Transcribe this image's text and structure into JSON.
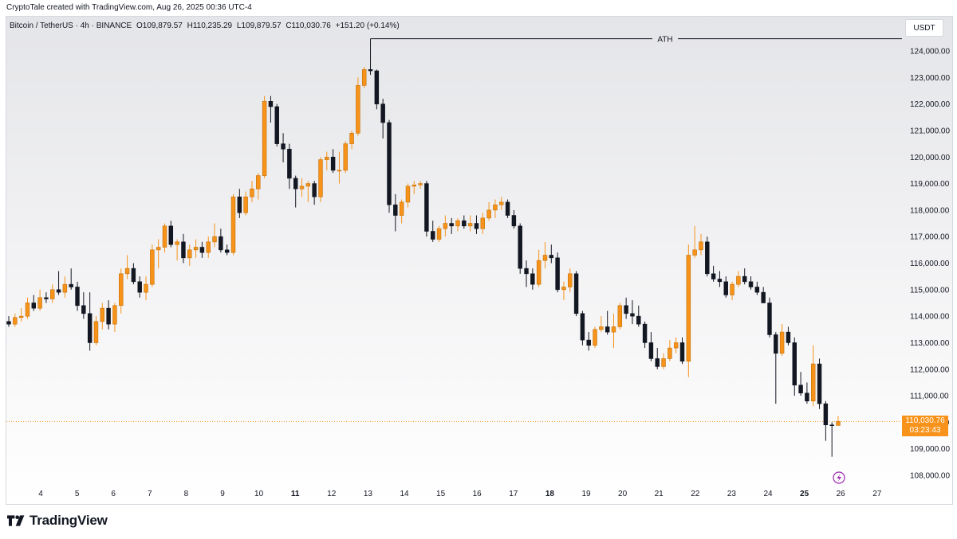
{
  "header": {
    "credit": "CryptoTale created with TradingView.com, Aug 26, 2025 00:36 UTC-4"
  },
  "legend": {
    "symbol": "Bitcoin / TetherUS · 4h · BINANCE",
    "open": "O109,879.57",
    "high": "H110,235.29",
    "low": "L109,879.57",
    "close": "C110,030.76",
    "change": "+151.20 (+0.14%)"
  },
  "currency_button": "USDT",
  "price_tag": {
    "price": "110,030.76",
    "countdown": "03:23:43"
  },
  "annotation": {
    "label": "ATH",
    "price": 124400
  },
  "brand": {
    "name": "TradingView",
    "logo_icon": "tradingview-logo-icon"
  },
  "colors": {
    "up": "#f7931a",
    "down": "#131722",
    "last_price": "#f7931a"
  },
  "chart_data": {
    "type": "candlestick",
    "symbol": "BTCUSDT",
    "timeframe": "4h",
    "y_axis": {
      "ticks": [
        108000,
        109000,
        110000,
        111000,
        112000,
        113000,
        114000,
        115000,
        116000,
        117000,
        118000,
        119000,
        120000,
        121000,
        122000,
        123000,
        124000
      ],
      "tick_labels": [
        "108,000.00",
        "109,000.00",
        "110,000.00",
        "111,000.00",
        "112,000.00",
        "113,000.00",
        "114,000.00",
        "115,000.00",
        "116,000.00",
        "117,000.00",
        "118,000.00",
        "119,000.00",
        "120,000.00",
        "121,000.00",
        "122,000.00",
        "123,000.00",
        "124,000.00"
      ],
      "range": [
        107400,
        125000
      ]
    },
    "x_axis": {
      "labels": [
        "4",
        "5",
        "6",
        "7",
        "8",
        "9",
        "10",
        "11",
        "12",
        "13",
        "14",
        "15",
        "16",
        "17",
        "18",
        "19",
        "20",
        "21",
        "22",
        "23",
        "24",
        "25",
        "26",
        "27"
      ],
      "bold": [
        "11",
        "18",
        "25"
      ],
      "day_range": [
        3.2,
        27.8
      ]
    },
    "last_price": 110030.76,
    "candles": [
      {
        "o": 113800,
        "h": 114000,
        "l": 113600,
        "c": 113700
      },
      {
        "o": 113700,
        "h": 114100,
        "l": 113600,
        "c": 113950
      },
      {
        "o": 113950,
        "h": 114300,
        "l": 113800,
        "c": 114000
      },
      {
        "o": 114000,
        "h": 114700,
        "l": 113900,
        "c": 114500
      },
      {
        "o": 114500,
        "h": 114800,
        "l": 114200,
        "c": 114300
      },
      {
        "o": 114300,
        "h": 115000,
        "l": 114200,
        "c": 114700
      },
      {
        "o": 114700,
        "h": 114900,
        "l": 114500,
        "c": 114650
      },
      {
        "o": 114650,
        "h": 115200,
        "l": 114500,
        "c": 115000
      },
      {
        "o": 115000,
        "h": 115700,
        "l": 114800,
        "c": 114900
      },
      {
        "o": 114900,
        "h": 115500,
        "l": 114700,
        "c": 115200
      },
      {
        "o": 115200,
        "h": 115800,
        "l": 115000,
        "c": 115100
      },
      {
        "o": 115100,
        "h": 115300,
        "l": 114200,
        "c": 114400
      },
      {
        "o": 114400,
        "h": 114900,
        "l": 113900,
        "c": 114100
      },
      {
        "o": 114100,
        "h": 114900,
        "l": 112700,
        "c": 113000
      },
      {
        "o": 113000,
        "h": 114000,
        "l": 112900,
        "c": 113800
      },
      {
        "o": 113800,
        "h": 114500,
        "l": 113500,
        "c": 114300
      },
      {
        "o": 114300,
        "h": 114600,
        "l": 113500,
        "c": 113700
      },
      {
        "o": 113700,
        "h": 114500,
        "l": 113400,
        "c": 114400
      },
      {
        "o": 114400,
        "h": 115800,
        "l": 114100,
        "c": 115600
      },
      {
        "o": 115600,
        "h": 116300,
        "l": 115400,
        "c": 115800
      },
      {
        "o": 115800,
        "h": 116000,
        "l": 115200,
        "c": 115300
      },
      {
        "o": 115300,
        "h": 115500,
        "l": 114700,
        "c": 114900
      },
      {
        "o": 114900,
        "h": 115500,
        "l": 114600,
        "c": 115200
      },
      {
        "o": 115200,
        "h": 116700,
        "l": 115100,
        "c": 116500
      },
      {
        "o": 116500,
        "h": 116900,
        "l": 115800,
        "c": 116600
      },
      {
        "o": 116600,
        "h": 117500,
        "l": 116400,
        "c": 117400
      },
      {
        "o": 117400,
        "h": 117600,
        "l": 116600,
        "c": 116700
      },
      {
        "o": 116700,
        "h": 116900,
        "l": 116100,
        "c": 116800
      },
      {
        "o": 116800,
        "h": 117100,
        "l": 116000,
        "c": 116200
      },
      {
        "o": 116200,
        "h": 116700,
        "l": 115900,
        "c": 116500
      },
      {
        "o": 116500,
        "h": 116900,
        "l": 116200,
        "c": 116600
      },
      {
        "o": 116600,
        "h": 116800,
        "l": 116200,
        "c": 116400
      },
      {
        "o": 116400,
        "h": 117000,
        "l": 116200,
        "c": 116800
      },
      {
        "o": 116800,
        "h": 117500,
        "l": 116600,
        "c": 117000
      },
      {
        "o": 117000,
        "h": 117300,
        "l": 116400,
        "c": 116500
      },
      {
        "o": 116500,
        "h": 116700,
        "l": 116300,
        "c": 116400
      },
      {
        "o": 116400,
        "h": 118600,
        "l": 116300,
        "c": 118500
      },
      {
        "o": 118500,
        "h": 118800,
        "l": 117700,
        "c": 117900
      },
      {
        "o": 117900,
        "h": 118700,
        "l": 117800,
        "c": 118500
      },
      {
        "o": 118500,
        "h": 119100,
        "l": 118300,
        "c": 118800
      },
      {
        "o": 118800,
        "h": 119400,
        "l": 118400,
        "c": 119300
      },
      {
        "o": 119300,
        "h": 122300,
        "l": 119200,
        "c": 122100
      },
      {
        "o": 122100,
        "h": 122300,
        "l": 121300,
        "c": 121900
      },
      {
        "o": 121900,
        "h": 122000,
        "l": 120400,
        "c": 120500
      },
      {
        "o": 120500,
        "h": 120900,
        "l": 119800,
        "c": 120300
      },
      {
        "o": 120300,
        "h": 120500,
        "l": 118800,
        "c": 119200
      },
      {
        "o": 119200,
        "h": 119300,
        "l": 118100,
        "c": 118800
      },
      {
        "o": 118800,
        "h": 119200,
        "l": 118500,
        "c": 118900
      },
      {
        "o": 118900,
        "h": 119100,
        "l": 118300,
        "c": 119000
      },
      {
        "o": 119000,
        "h": 119100,
        "l": 118200,
        "c": 118500
      },
      {
        "o": 118500,
        "h": 120000,
        "l": 118300,
        "c": 119900
      },
      {
        "o": 119900,
        "h": 120200,
        "l": 119500,
        "c": 120000
      },
      {
        "o": 120000,
        "h": 120300,
        "l": 119400,
        "c": 119500
      },
      {
        "o": 119500,
        "h": 120200,
        "l": 119000,
        "c": 119500
      },
      {
        "o": 119500,
        "h": 120600,
        "l": 119400,
        "c": 120500
      },
      {
        "o": 120500,
        "h": 121000,
        "l": 120300,
        "c": 120900
      },
      {
        "o": 120900,
        "h": 123000,
        "l": 120800,
        "c": 122700
      },
      {
        "o": 122700,
        "h": 123400,
        "l": 122600,
        "c": 123300
      },
      {
        "o": 123300,
        "h": 124400,
        "l": 123100,
        "c": 123250
      },
      {
        "o": 123250,
        "h": 123300,
        "l": 121800,
        "c": 122000
      },
      {
        "o": 122000,
        "h": 122200,
        "l": 120700,
        "c": 121300
      },
      {
        "o": 121300,
        "h": 121400,
        "l": 117900,
        "c": 118200
      },
      {
        "o": 118200,
        "h": 118600,
        "l": 117200,
        "c": 117800
      },
      {
        "o": 117800,
        "h": 118400,
        "l": 117500,
        "c": 118300
      },
      {
        "o": 118300,
        "h": 119000,
        "l": 118100,
        "c": 118900
      },
      {
        "o": 118900,
        "h": 119100,
        "l": 118600,
        "c": 118950
      },
      {
        "o": 118950,
        "h": 119100,
        "l": 118800,
        "c": 119000
      },
      {
        "o": 119000,
        "h": 119100,
        "l": 117000,
        "c": 117200
      },
      {
        "o": 117200,
        "h": 117600,
        "l": 116800,
        "c": 116900
      },
      {
        "o": 116900,
        "h": 117400,
        "l": 116800,
        "c": 117300
      },
      {
        "o": 117300,
        "h": 117800,
        "l": 117000,
        "c": 117500
      },
      {
        "o": 117500,
        "h": 117700,
        "l": 117100,
        "c": 117400
      },
      {
        "o": 117400,
        "h": 117700,
        "l": 117200,
        "c": 117600
      },
      {
        "o": 117600,
        "h": 117800,
        "l": 117300,
        "c": 117400
      },
      {
        "o": 117400,
        "h": 117800,
        "l": 117200,
        "c": 117500
      },
      {
        "o": 117500,
        "h": 117800,
        "l": 117100,
        "c": 117300
      },
      {
        "o": 117300,
        "h": 117900,
        "l": 117100,
        "c": 117700
      },
      {
        "o": 117700,
        "h": 118300,
        "l": 117600,
        "c": 118000
      },
      {
        "o": 118000,
        "h": 118400,
        "l": 117700,
        "c": 118200
      },
      {
        "o": 118200,
        "h": 118500,
        "l": 118000,
        "c": 118300
      },
      {
        "o": 118300,
        "h": 118400,
        "l": 117700,
        "c": 117800
      },
      {
        "o": 117800,
        "h": 118000,
        "l": 117300,
        "c": 117400
      },
      {
        "o": 117400,
        "h": 117500,
        "l": 115600,
        "c": 115800
      },
      {
        "o": 115800,
        "h": 116100,
        "l": 115100,
        "c": 115600
      },
      {
        "o": 115600,
        "h": 115800,
        "l": 115000,
        "c": 115200
      },
      {
        "o": 115200,
        "h": 116500,
        "l": 115100,
        "c": 116100
      },
      {
        "o": 116100,
        "h": 116800,
        "l": 115800,
        "c": 116300
      },
      {
        "o": 116300,
        "h": 116700,
        "l": 116000,
        "c": 116200
      },
      {
        "o": 116200,
        "h": 116400,
        "l": 114900,
        "c": 115000
      },
      {
        "o": 115000,
        "h": 115300,
        "l": 114600,
        "c": 115100
      },
      {
        "o": 115100,
        "h": 115800,
        "l": 114900,
        "c": 115600
      },
      {
        "o": 115600,
        "h": 115700,
        "l": 114000,
        "c": 114100
      },
      {
        "o": 114100,
        "h": 114200,
        "l": 112900,
        "c": 113100
      },
      {
        "o": 113100,
        "h": 113400,
        "l": 112700,
        "c": 112900
      },
      {
        "o": 112900,
        "h": 113600,
        "l": 112800,
        "c": 113500
      },
      {
        "o": 113500,
        "h": 114000,
        "l": 113400,
        "c": 113600
      },
      {
        "o": 113600,
        "h": 114200,
        "l": 113300,
        "c": 113400
      },
      {
        "o": 113400,
        "h": 114100,
        "l": 112800,
        "c": 113600
      },
      {
        "o": 113600,
        "h": 114500,
        "l": 113500,
        "c": 114400
      },
      {
        "o": 114400,
        "h": 114700,
        "l": 113900,
        "c": 114100
      },
      {
        "o": 114100,
        "h": 114600,
        "l": 113700,
        "c": 114000
      },
      {
        "o": 114000,
        "h": 114400,
        "l": 113600,
        "c": 113700
      },
      {
        "o": 113700,
        "h": 113800,
        "l": 112800,
        "c": 113000
      },
      {
        "o": 113000,
        "h": 113400,
        "l": 112300,
        "c": 112400
      },
      {
        "o": 112400,
        "h": 112800,
        "l": 112000,
        "c": 112100
      },
      {
        "o": 112100,
        "h": 112600,
        "l": 112000,
        "c": 112400
      },
      {
        "o": 112400,
        "h": 113100,
        "l": 112300,
        "c": 112800
      },
      {
        "o": 112800,
        "h": 113200,
        "l": 112600,
        "c": 113000
      },
      {
        "o": 113000,
        "h": 113200,
        "l": 112200,
        "c": 112300
      },
      {
        "o": 112300,
        "h": 116700,
        "l": 111700,
        "c": 116300
      },
      {
        "o": 116300,
        "h": 117400,
        "l": 116200,
        "c": 116500
      },
      {
        "o": 116500,
        "h": 117100,
        "l": 116300,
        "c": 116800
      },
      {
        "o": 116800,
        "h": 117000,
        "l": 115500,
        "c": 115600
      },
      {
        "o": 115600,
        "h": 115900,
        "l": 115300,
        "c": 115400
      },
      {
        "o": 115400,
        "h": 115700,
        "l": 115100,
        "c": 115300
      },
      {
        "o": 115300,
        "h": 115500,
        "l": 114700,
        "c": 114800
      },
      {
        "o": 114800,
        "h": 115300,
        "l": 114600,
        "c": 115200
      },
      {
        "o": 115200,
        "h": 115700,
        "l": 115100,
        "c": 115500
      },
      {
        "o": 115500,
        "h": 115800,
        "l": 115200,
        "c": 115300
      },
      {
        "o": 115300,
        "h": 115500,
        "l": 115000,
        "c": 115100
      },
      {
        "o": 115100,
        "h": 115300,
        "l": 114800,
        "c": 114900
      },
      {
        "o": 114900,
        "h": 115100,
        "l": 114500,
        "c": 114500
      },
      {
        "o": 114500,
        "h": 114700,
        "l": 113200,
        "c": 113300
      },
      {
        "o": 113300,
        "h": 113400,
        "l": 110700,
        "c": 112600
      },
      {
        "o": 112600,
        "h": 113700,
        "l": 112500,
        "c": 113400
      },
      {
        "o": 113400,
        "h": 113600,
        "l": 112900,
        "c": 113000
      },
      {
        "o": 113000,
        "h": 113200,
        "l": 111000,
        "c": 111400
      },
      {
        "o": 111400,
        "h": 111900,
        "l": 111000,
        "c": 111100
      },
      {
        "o": 111100,
        "h": 111500,
        "l": 110700,
        "c": 110800
      },
      {
        "o": 110800,
        "h": 112900,
        "l": 110600,
        "c": 112200
      },
      {
        "o": 112200,
        "h": 112400,
        "l": 110500,
        "c": 110700
      },
      {
        "o": 110700,
        "h": 110800,
        "l": 109300,
        "c": 109900
      },
      {
        "o": 109900,
        "h": 110000,
        "l": 108700,
        "c": 109880
      },
      {
        "o": 109880,
        "h": 110235,
        "l": 109880,
        "c": 110031
      }
    ]
  }
}
